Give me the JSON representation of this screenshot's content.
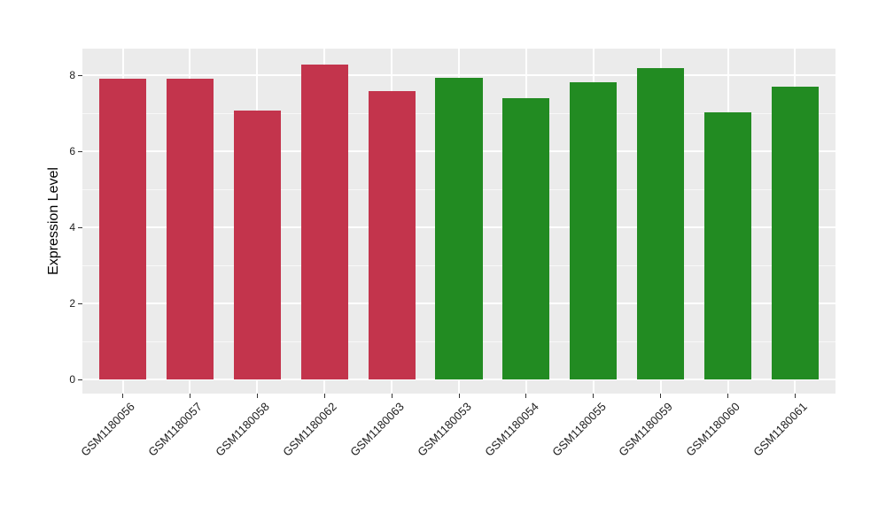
{
  "figure": {
    "background": "#FFFFFF"
  },
  "chart_data": {
    "type": "bar",
    "title": "",
    "xlabel": "",
    "ylabel": "Expression Level",
    "categories": [
      "GSM1180056",
      "GSM1180057",
      "GSM1180058",
      "GSM1180062",
      "GSM1180063",
      "GSM1180053",
      "GSM1180054",
      "GSM1180055",
      "GSM1180059",
      "GSM1180060",
      "GSM1180061"
    ],
    "values": [
      7.92,
      7.92,
      7.07,
      8.28,
      7.58,
      7.93,
      7.4,
      7.81,
      8.18,
      7.02,
      7.69
    ],
    "colors": [
      "#C3344C",
      "#C3344C",
      "#C3344C",
      "#C3344C",
      "#C3344C",
      "#228B22",
      "#228B22",
      "#228B22",
      "#228B22",
      "#228B22",
      "#228B22"
    ],
    "yticks": [
      0,
      2,
      4,
      6,
      8
    ],
    "yticks_minor": [
      1,
      3,
      5,
      7
    ],
    "ylim": [
      -0.37,
      8.7
    ],
    "bar_width_fraction": 0.7,
    "x_expand": 0.6,
    "grid": true,
    "legend": "none",
    "style": {
      "panel_bg": "#EBEBEB",
      "grid_major_color": "#FFFFFF",
      "grid_minor_color": "#FFFFFF",
      "red_bar_color": "#C3344C",
      "green_bar_color": "#228B22",
      "tick_mark_color": "#333333",
      "axis_text_color": "#1D1D1D",
      "axis_title_color": "#000000"
    }
  }
}
